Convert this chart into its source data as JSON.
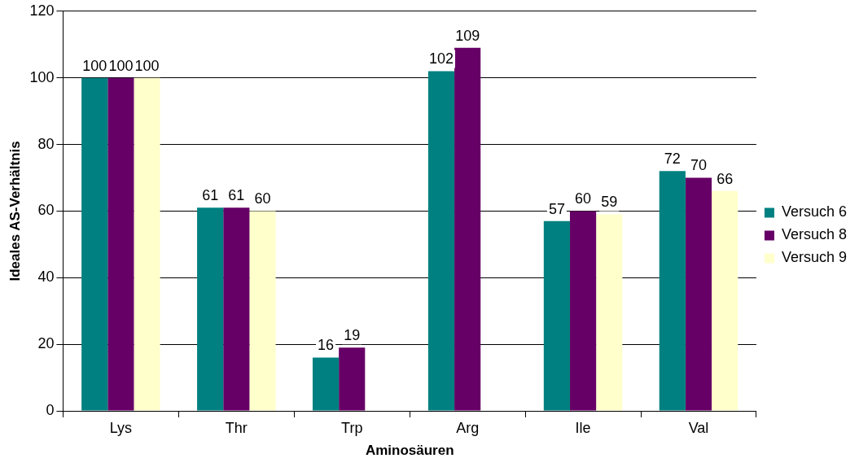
{
  "chart_data": {
    "type": "bar",
    "xlabel": "Aminosäuren",
    "ylabel": "Ideales AS-Verhältnis",
    "categories": [
      "Lys",
      "Thr",
      "Trp",
      "Arg",
      "Ile",
      "Val"
    ],
    "series": [
      {
        "name": "Versuch 6",
        "color": "#008080",
        "values": [
          100,
          61,
          16,
          102,
          57,
          72
        ]
      },
      {
        "name": "Versuch 8",
        "color": "#660066",
        "values": [
          100,
          61,
          19,
          109,
          60,
          70
        ]
      },
      {
        "name": "Versuch 9",
        "color": "#ffffcc",
        "values": [
          100,
          60,
          null,
          null,
          59,
          66
        ]
      }
    ],
    "ylim": [
      0,
      120
    ],
    "yticks": [
      0,
      20,
      40,
      60,
      80,
      100,
      120
    ],
    "grid": "y",
    "legend": "right",
    "data_labels": true
  }
}
